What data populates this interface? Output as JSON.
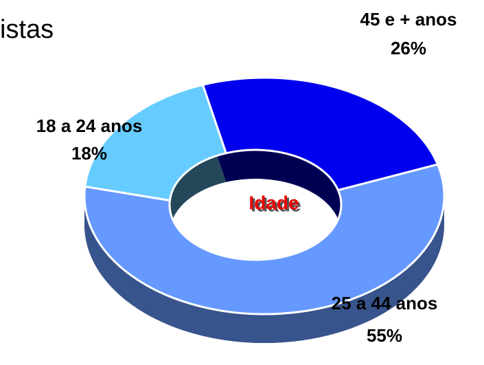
{
  "chart_data": {
    "type": "donut",
    "title": "istas",
    "center_label": "Idade",
    "categories": [
      "45 e + anos",
      "25 a 44 anos",
      "18 a 24 anos"
    ],
    "values": [
      26,
      55,
      18
    ],
    "value_labels": [
      "26%",
      "55%",
      "18%"
    ],
    "colors": [
      "#0000ee",
      "#6699ff",
      "#66ccff"
    ]
  }
}
